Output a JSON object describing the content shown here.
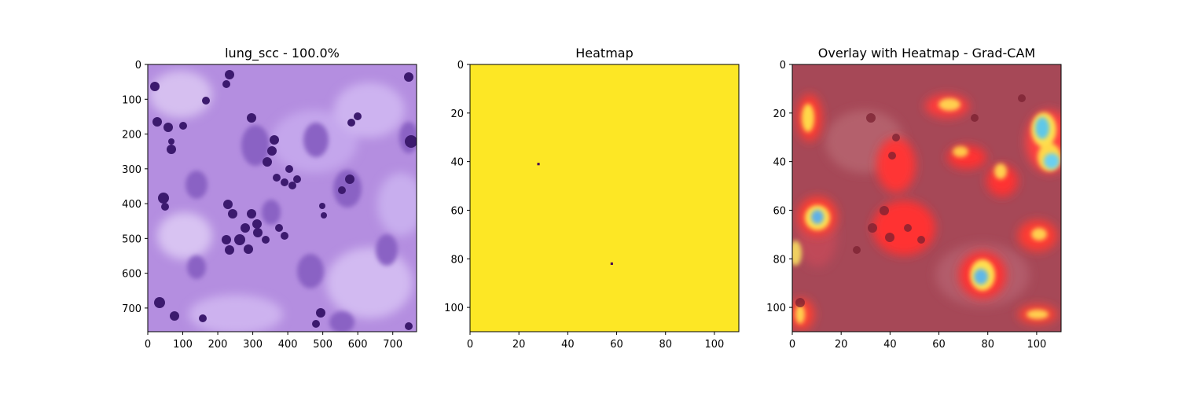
{
  "chart_data": [
    {
      "type": "image",
      "title": "lung_scc - 100.0%",
      "xlim": [
        0,
        768
      ],
      "ylim": [
        768,
        0
      ],
      "xticks": [
        0,
        100,
        200,
        300,
        400,
        500,
        600,
        700
      ],
      "yticks": [
        0,
        100,
        200,
        300,
        400,
        500,
        600,
        700
      ],
      "content": "H&E stained lung squamous cell carcinoma tissue patch (purple/pink)",
      "colors": {
        "background": "#b68ee0",
        "nuclei": "#3c1a6e"
      }
    },
    {
      "type": "heatmap",
      "title": "Heatmap",
      "xlim": [
        0,
        110
      ],
      "ylim": [
        110,
        0
      ],
      "xticks": [
        0,
        20,
        40,
        60,
        80,
        100
      ],
      "yticks": [
        0,
        20,
        40,
        60,
        80,
        100
      ],
      "fill_value": "max",
      "colormap": "viridis",
      "colors": {
        "fill": "#fde725",
        "low": "#440154"
      },
      "low_points": [
        {
          "x": 28,
          "y": 41
        },
        {
          "x": 58,
          "y": 82
        }
      ]
    },
    {
      "type": "image",
      "title": "Overlay with Heatmap - Grad-CAM",
      "xlim": [
        0,
        110
      ],
      "ylim": [
        110,
        0
      ],
      "xticks": [
        0,
        20,
        40,
        60,
        80,
        100
      ],
      "yticks": [
        0,
        20,
        40,
        60,
        80,
        100
      ],
      "content": "Tissue image overlaid with Grad-CAM jet colormap (mostly red, with yellow and cyan hotspots)",
      "colors": {
        "base": "#a84a58",
        "hot": "#ff3030",
        "warm": "#ffd84a",
        "cool": "#5fc8e8"
      }
    }
  ]
}
